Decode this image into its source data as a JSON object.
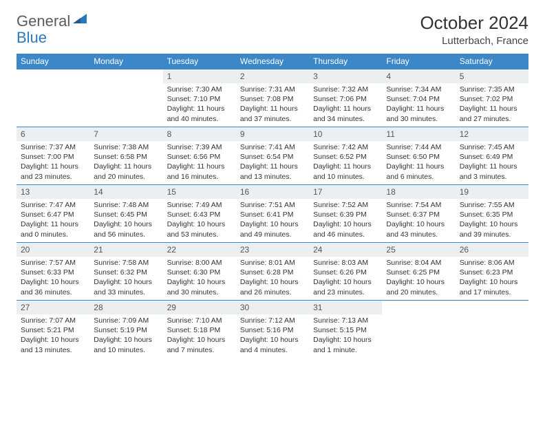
{
  "brand": {
    "part1": "General",
    "part2": "Blue"
  },
  "title": "October 2024",
  "location": "Lutterbach, France",
  "day_headers": [
    "Sunday",
    "Monday",
    "Tuesday",
    "Wednesday",
    "Thursday",
    "Friday",
    "Saturday"
  ],
  "colors": {
    "header_bg": "#3b87c8",
    "header_text": "#ffffff",
    "date_bg": "#eceff1",
    "brand_gray": "#5b5b5b",
    "brand_blue": "#2c78bd",
    "week_border": "#3b87c8"
  },
  "calendar": {
    "type": "table",
    "columns": 7,
    "rows": 5,
    "weeks": [
      [
        null,
        null,
        {
          "n": "1",
          "sr": "7:30 AM",
          "ss": "7:10 PM",
          "dl": "11 hours and 40 minutes."
        },
        {
          "n": "2",
          "sr": "7:31 AM",
          "ss": "7:08 PM",
          "dl": "11 hours and 37 minutes."
        },
        {
          "n": "3",
          "sr": "7:32 AM",
          "ss": "7:06 PM",
          "dl": "11 hours and 34 minutes."
        },
        {
          "n": "4",
          "sr": "7:34 AM",
          "ss": "7:04 PM",
          "dl": "11 hours and 30 minutes."
        },
        {
          "n": "5",
          "sr": "7:35 AM",
          "ss": "7:02 PM",
          "dl": "11 hours and 27 minutes."
        }
      ],
      [
        {
          "n": "6",
          "sr": "7:37 AM",
          "ss": "7:00 PM",
          "dl": "11 hours and 23 minutes."
        },
        {
          "n": "7",
          "sr": "7:38 AM",
          "ss": "6:58 PM",
          "dl": "11 hours and 20 minutes."
        },
        {
          "n": "8",
          "sr": "7:39 AM",
          "ss": "6:56 PM",
          "dl": "11 hours and 16 minutes."
        },
        {
          "n": "9",
          "sr": "7:41 AM",
          "ss": "6:54 PM",
          "dl": "11 hours and 13 minutes."
        },
        {
          "n": "10",
          "sr": "7:42 AM",
          "ss": "6:52 PM",
          "dl": "11 hours and 10 minutes."
        },
        {
          "n": "11",
          "sr": "7:44 AM",
          "ss": "6:50 PM",
          "dl": "11 hours and 6 minutes."
        },
        {
          "n": "12",
          "sr": "7:45 AM",
          "ss": "6:49 PM",
          "dl": "11 hours and 3 minutes."
        }
      ],
      [
        {
          "n": "13",
          "sr": "7:47 AM",
          "ss": "6:47 PM",
          "dl": "11 hours and 0 minutes."
        },
        {
          "n": "14",
          "sr": "7:48 AM",
          "ss": "6:45 PM",
          "dl": "10 hours and 56 minutes."
        },
        {
          "n": "15",
          "sr": "7:49 AM",
          "ss": "6:43 PM",
          "dl": "10 hours and 53 minutes."
        },
        {
          "n": "16",
          "sr": "7:51 AM",
          "ss": "6:41 PM",
          "dl": "10 hours and 49 minutes."
        },
        {
          "n": "17",
          "sr": "7:52 AM",
          "ss": "6:39 PM",
          "dl": "10 hours and 46 minutes."
        },
        {
          "n": "18",
          "sr": "7:54 AM",
          "ss": "6:37 PM",
          "dl": "10 hours and 43 minutes."
        },
        {
          "n": "19",
          "sr": "7:55 AM",
          "ss": "6:35 PM",
          "dl": "10 hours and 39 minutes."
        }
      ],
      [
        {
          "n": "20",
          "sr": "7:57 AM",
          "ss": "6:33 PM",
          "dl": "10 hours and 36 minutes."
        },
        {
          "n": "21",
          "sr": "7:58 AM",
          "ss": "6:32 PM",
          "dl": "10 hours and 33 minutes."
        },
        {
          "n": "22",
          "sr": "8:00 AM",
          "ss": "6:30 PM",
          "dl": "10 hours and 30 minutes."
        },
        {
          "n": "23",
          "sr": "8:01 AM",
          "ss": "6:28 PM",
          "dl": "10 hours and 26 minutes."
        },
        {
          "n": "24",
          "sr": "8:03 AM",
          "ss": "6:26 PM",
          "dl": "10 hours and 23 minutes."
        },
        {
          "n": "25",
          "sr": "8:04 AM",
          "ss": "6:25 PM",
          "dl": "10 hours and 20 minutes."
        },
        {
          "n": "26",
          "sr": "8:06 AM",
          "ss": "6:23 PM",
          "dl": "10 hours and 17 minutes."
        }
      ],
      [
        {
          "n": "27",
          "sr": "7:07 AM",
          "ss": "5:21 PM",
          "dl": "10 hours and 13 minutes."
        },
        {
          "n": "28",
          "sr": "7:09 AM",
          "ss": "5:19 PM",
          "dl": "10 hours and 10 minutes."
        },
        {
          "n": "29",
          "sr": "7:10 AM",
          "ss": "5:18 PM",
          "dl": "10 hours and 7 minutes."
        },
        {
          "n": "30",
          "sr": "7:12 AM",
          "ss": "5:16 PM",
          "dl": "10 hours and 4 minutes."
        },
        {
          "n": "31",
          "sr": "7:13 AM",
          "ss": "5:15 PM",
          "dl": "10 hours and 1 minute."
        },
        null,
        null
      ]
    ]
  },
  "labels": {
    "sunrise_prefix": "Sunrise: ",
    "sunset_prefix": "Sunset: ",
    "daylight_prefix": "Daylight: "
  }
}
